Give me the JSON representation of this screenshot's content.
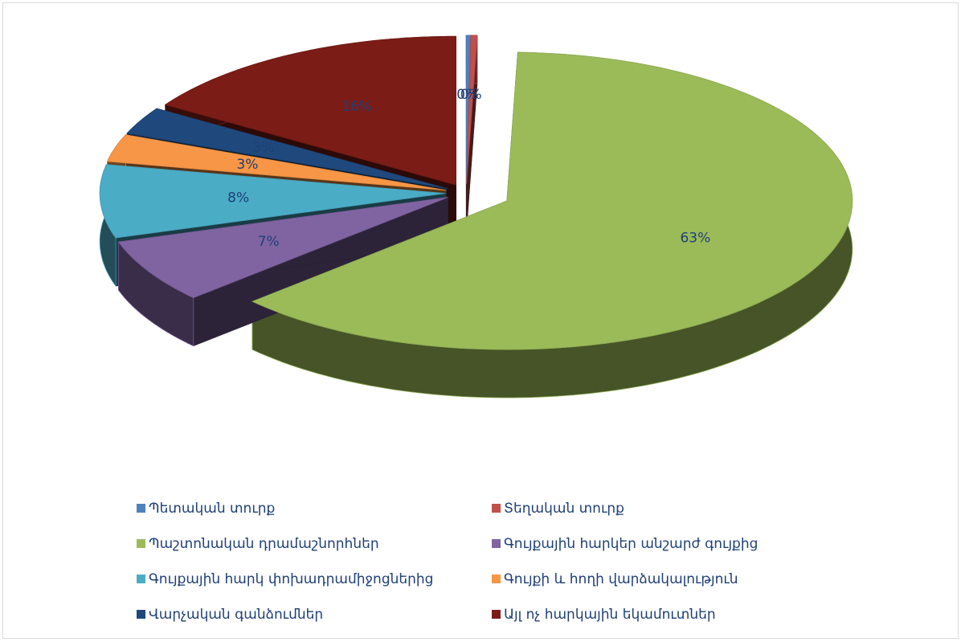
{
  "chart_data": {
    "type": "pie3d",
    "categories": [
      "Պետական տուրք",
      "Տեղական տուրք",
      "Պաշտոնական դրամաշնորհներ",
      "Գույքային հարկեր անշարժ գույքից",
      "Գույքային հարկ փոխադրամիջոցներից",
      "Գույքի և հողի վարձակալություն",
      "Վարչական գանձումներ",
      "Այլ ոչ հարկային եկամուտներ"
    ],
    "values": [
      0.2,
      0.3,
      63,
      7,
      8,
      3,
      3,
      16
    ],
    "value_labels": [
      "0%",
      "0%",
      "63%",
      "7%",
      "8%",
      "3%",
      "3%",
      "16%"
    ],
    "colors": [
      "#4f81bd",
      "#c0504d",
      "#9bbb59",
      "#8064a2",
      "#4bacc6",
      "#f79646",
      "#1f497d",
      "#7b1c17"
    ],
    "legend": "bottom"
  }
}
